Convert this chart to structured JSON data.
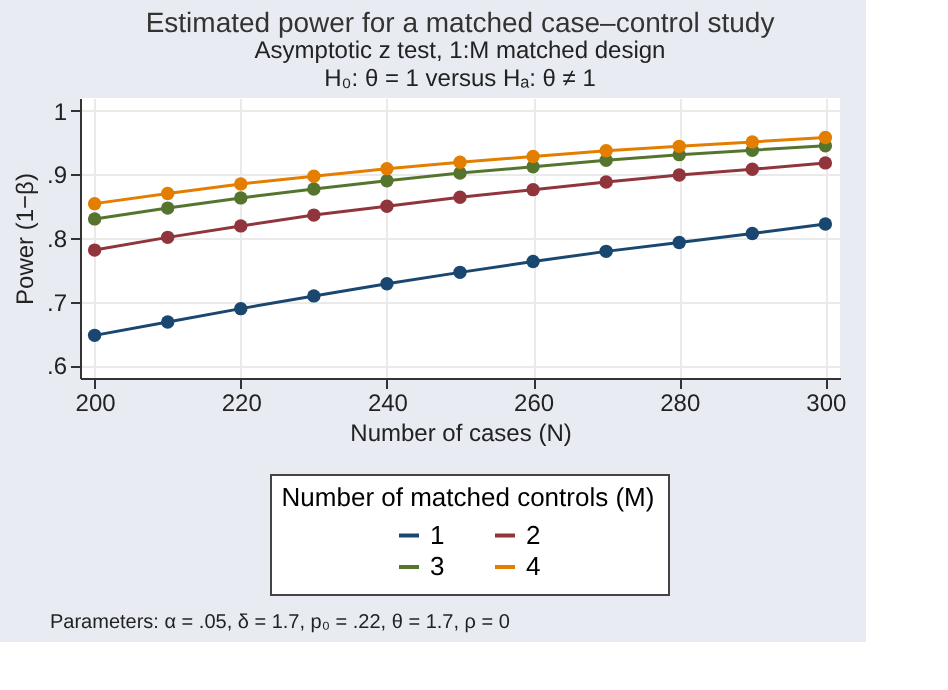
{
  "chart_data": {
    "type": "line",
    "title": "Estimated power for a matched case–control study",
    "subtitle": [
      "Asymptotic z test, 1:M matched design",
      "H₀: θ = 1  versus  Hₐ: θ ≠ 1"
    ],
    "xlabel": "Number of cases (N)",
    "ylabel": "Power (1−β)",
    "legend_title": "Number of matched controls (M)",
    "x": [
      200,
      210,
      220,
      230,
      240,
      250,
      260,
      270,
      280,
      290,
      300
    ],
    "series": [
      {
        "name": "1",
        "color": "#1a476f",
        "values": [
          0.647,
          0.668,
          0.689,
          0.709,
          0.728,
          0.746,
          0.763,
          0.779,
          0.793,
          0.807,
          0.822
        ]
      },
      {
        "name": "2",
        "color": "#90353b",
        "values": [
          0.781,
          0.801,
          0.819,
          0.836,
          0.85,
          0.864,
          0.876,
          0.888,
          0.899,
          0.908,
          0.918
        ]
      },
      {
        "name": "3",
        "color": "#55752f",
        "values": [
          0.83,
          0.847,
          0.863,
          0.877,
          0.89,
          0.902,
          0.912,
          0.922,
          0.931,
          0.938,
          0.945
        ]
      },
      {
        "name": "4",
        "color": "#e37e00",
        "values": [
          0.854,
          0.87,
          0.885,
          0.897,
          0.909,
          0.919,
          0.928,
          0.937,
          0.944,
          0.951,
          0.958
        ]
      }
    ],
    "xlim": [
      198,
      302
    ],
    "ylim": [
      0.58,
      1.02
    ],
    "xticks": [
      200,
      220,
      240,
      260,
      280,
      300
    ],
    "yticks": [
      {
        "value": 0.6,
        "label": ".6"
      },
      {
        "value": 0.7,
        "label": ".7"
      },
      {
        "value": 0.8,
        "label": ".8"
      },
      {
        "value": 0.9,
        "label": ".9"
      },
      1
    ],
    "grid": true,
    "legend": "bottom",
    "marker": "circle",
    "line_style": "solid",
    "annotations": [
      "Parameters: α = .05, δ = 1.7, p₀ = .22, θ = 1.7, ρ = 0"
    ]
  }
}
